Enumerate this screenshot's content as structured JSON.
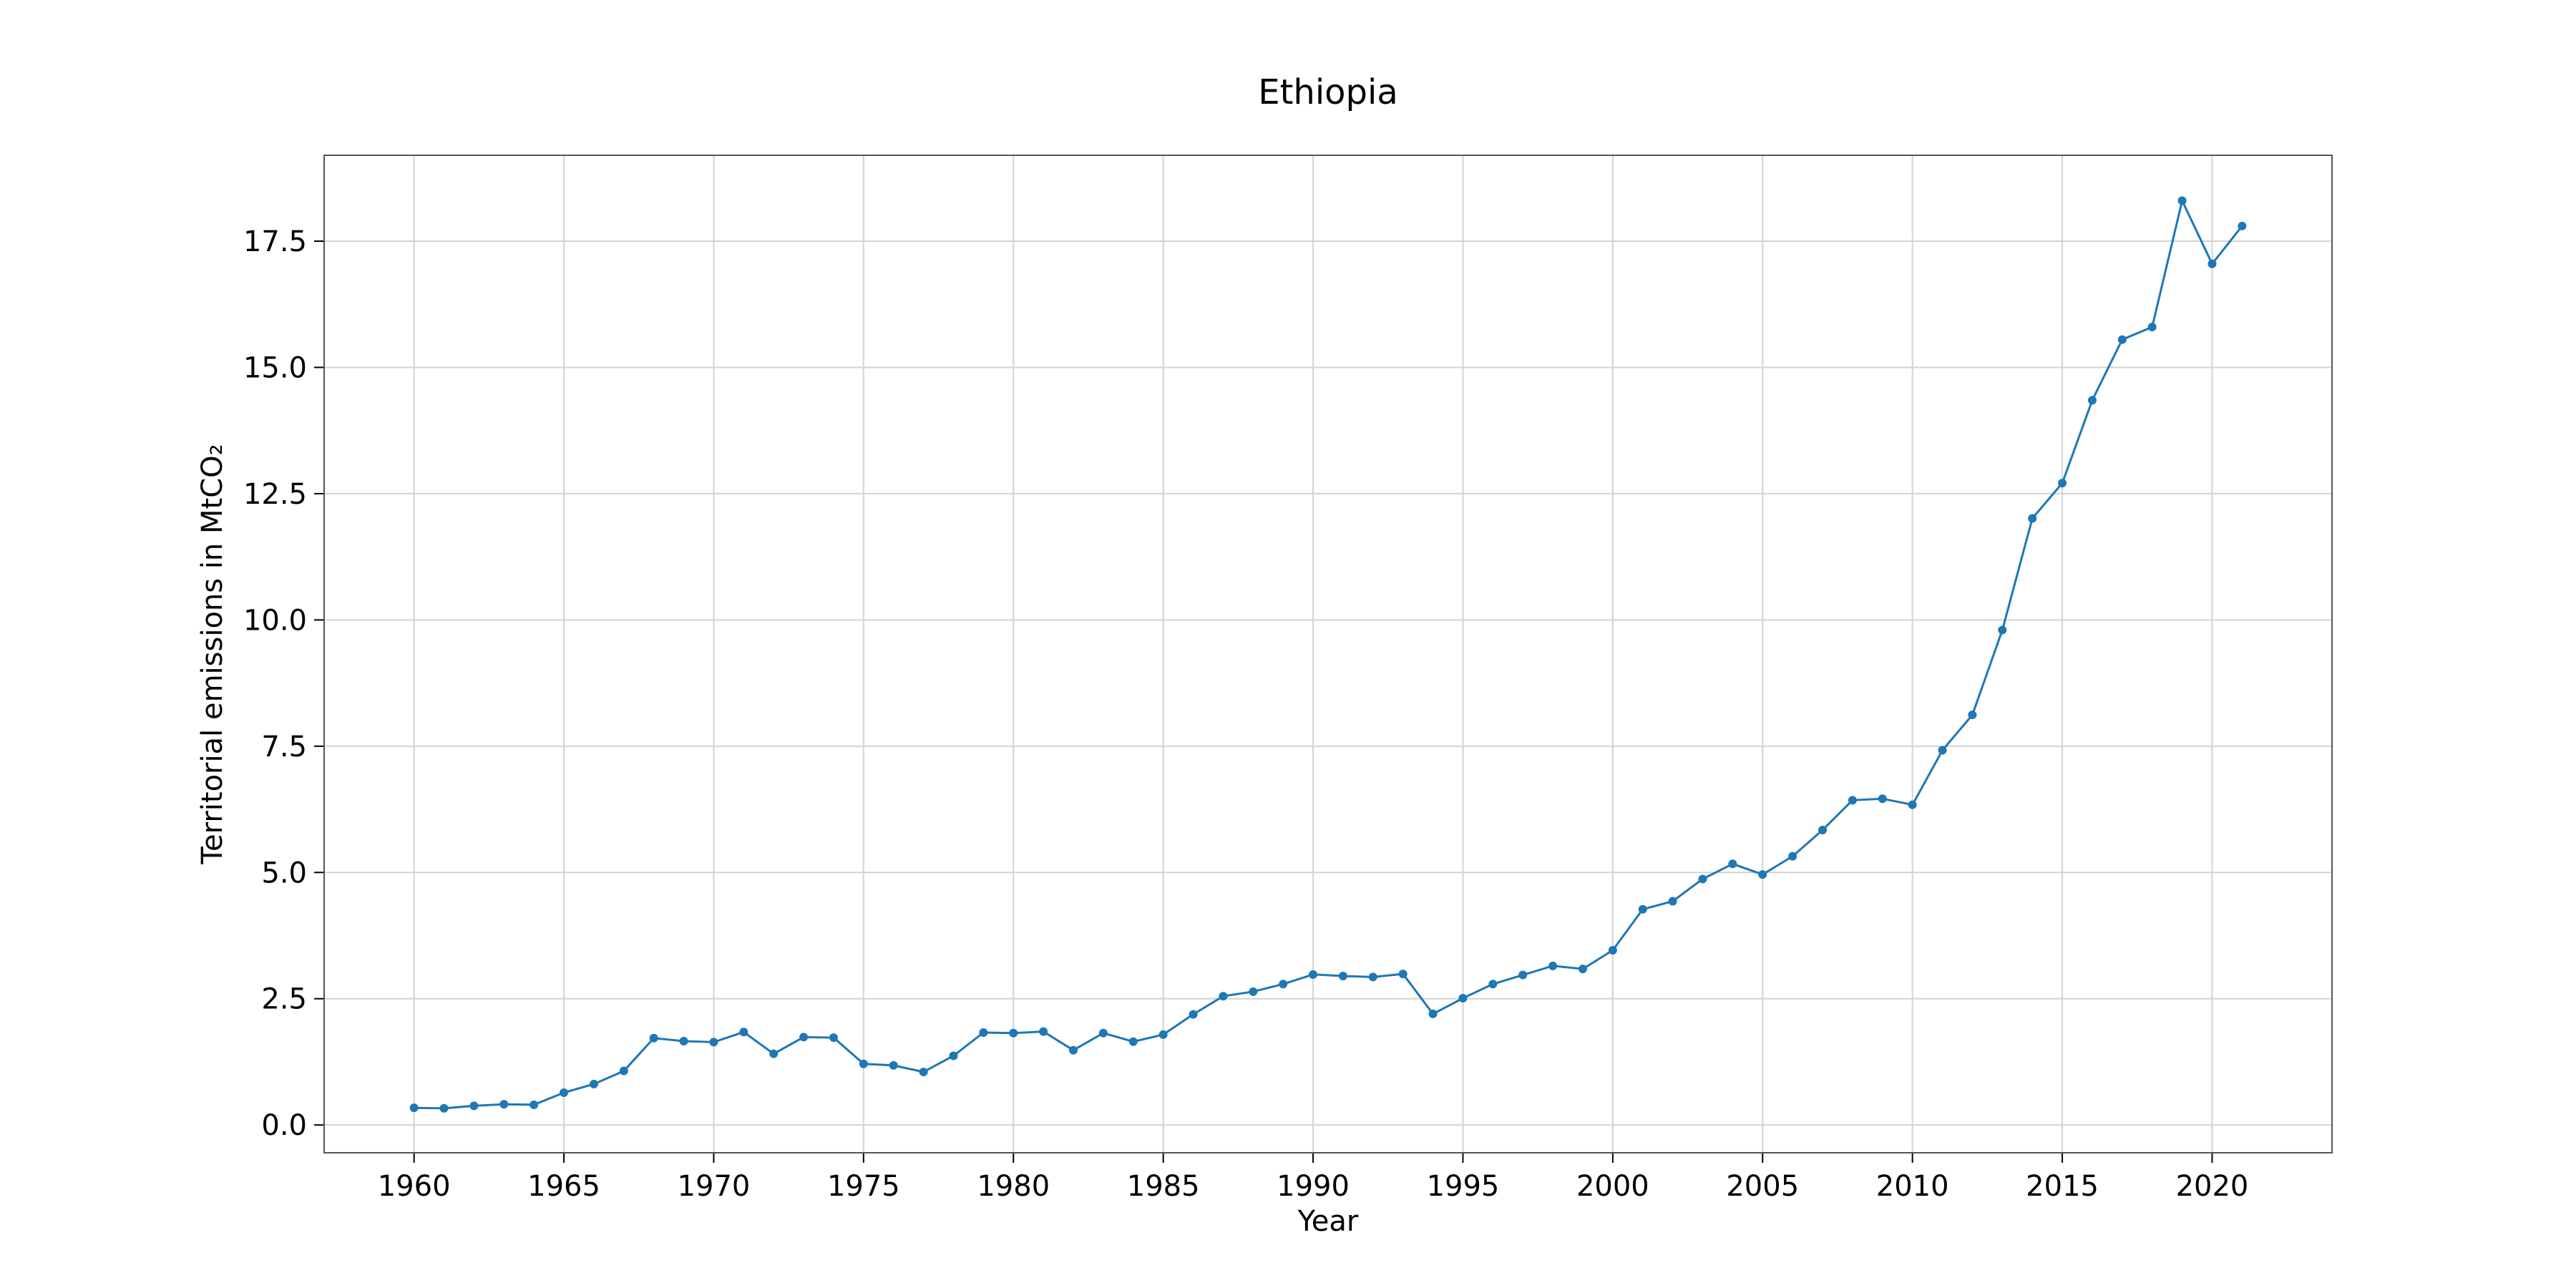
{
  "chart_data": {
    "type": "line",
    "title": "Ethiopia",
    "xlabel": "Year",
    "ylabel": "Territorial emissions in MtCO₂",
    "xlim": [
      1957,
      2024
    ],
    "ylim": [
      -0.55,
      19.2
    ],
    "xticks": [
      1960,
      1965,
      1970,
      1975,
      1980,
      1985,
      1990,
      1995,
      2000,
      2005,
      2010,
      2015,
      2020
    ],
    "yticks": [
      0.0,
      2.5,
      5.0,
      7.5,
      10.0,
      12.5,
      15.0,
      17.5
    ],
    "ytick_labels": [
      "0.0",
      "2.5",
      "5.0",
      "7.5",
      "10.0",
      "12.5",
      "15.0",
      "17.5"
    ],
    "grid": true,
    "color": "#1f77b4",
    "series": [
      {
        "x": [
          1960,
          1961,
          1962,
          1963,
          1964,
          1965,
          1966,
          1967,
          1968,
          1969,
          1970,
          1971,
          1972,
          1973,
          1974,
          1975,
          1976,
          1977,
          1978,
          1979,
          1980,
          1981,
          1982,
          1983,
          1984,
          1985,
          1986,
          1987,
          1988,
          1989,
          1990,
          1991,
          1992,
          1993,
          1994,
          1995,
          1996,
          1997,
          1998,
          1999,
          2000,
          2001,
          2002,
          2003,
          2004,
          2005,
          2006,
          2007,
          2008,
          2009,
          2010,
          2011,
          2012,
          2013,
          2014,
          2015,
          2016,
          2017,
          2018,
          2019,
          2020,
          2021
        ],
        "values": [
          0.34,
          0.33,
          0.38,
          0.41,
          0.4,
          0.64,
          0.81,
          1.07,
          1.72,
          1.66,
          1.64,
          1.84,
          1.41,
          1.74,
          1.73,
          1.21,
          1.18,
          1.05,
          1.37,
          1.83,
          1.82,
          1.85,
          1.48,
          1.82,
          1.65,
          1.79,
          2.19,
          2.55,
          2.64,
          2.79,
          2.98,
          2.95,
          2.93,
          2.99,
          2.2,
          2.51,
          2.79,
          2.97,
          3.15,
          3.09,
          3.46,
          4.27,
          4.43,
          4.87,
          5.17,
          4.96,
          5.32,
          5.84,
          6.43,
          6.46,
          6.34,
          7.42,
          8.12,
          9.8,
          12.01,
          12.71,
          14.35,
          15.55,
          15.8,
          18.3,
          17.05,
          17.8
        ]
      }
    ]
  }
}
